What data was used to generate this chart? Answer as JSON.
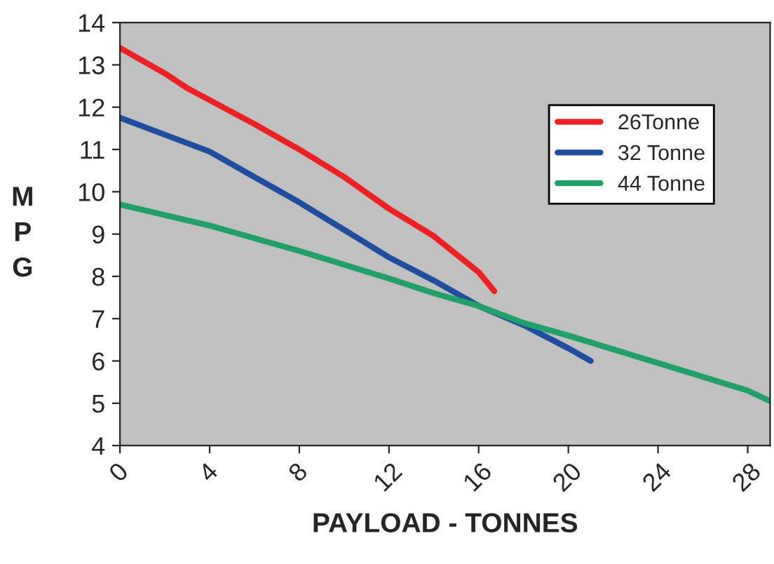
{
  "chart_data": {
    "type": "line",
    "xlabel": "PAYLOAD - TONNES",
    "ylabel": "MPG",
    "xlim": [
      0,
      29
    ],
    "xticks": [
      0,
      4,
      8,
      12,
      16,
      20,
      24,
      28
    ],
    "ylim": [
      4,
      14
    ],
    "yticks": [
      4,
      5,
      6,
      7,
      8,
      9,
      10,
      11,
      12,
      13,
      14
    ],
    "grid": false,
    "legend": "top right",
    "marker": "none",
    "line_style": "solid",
    "series": [
      {
        "name": "26Tonne",
        "color": "#ee2024",
        "x": [
          0,
          2,
          3,
          6,
          8,
          10,
          12,
          14,
          16,
          16.7
        ],
        "values": [
          13.4,
          12.8,
          12.45,
          11.6,
          11.0,
          10.35,
          9.6,
          8.95,
          8.1,
          7.65
        ]
      },
      {
        "name": "32 Tonne",
        "color": "#1f4e9e",
        "x": [
          0,
          4,
          6,
          8,
          10,
          12,
          14,
          16,
          18,
          20,
          21
        ],
        "values": [
          11.75,
          10.95,
          10.35,
          9.75,
          9.1,
          8.45,
          7.9,
          7.3,
          6.85,
          6.3,
          6.0
        ]
      },
      {
        "name": "44 Tonne",
        "color": "#23a06a",
        "x": [
          0,
          4,
          8,
          12,
          14,
          16,
          18,
          20,
          24,
          28,
          29
        ],
        "values": [
          9.7,
          9.2,
          8.6,
          7.95,
          7.6,
          7.3,
          6.9,
          6.6,
          5.95,
          5.3,
          5.05
        ]
      }
    ]
  }
}
